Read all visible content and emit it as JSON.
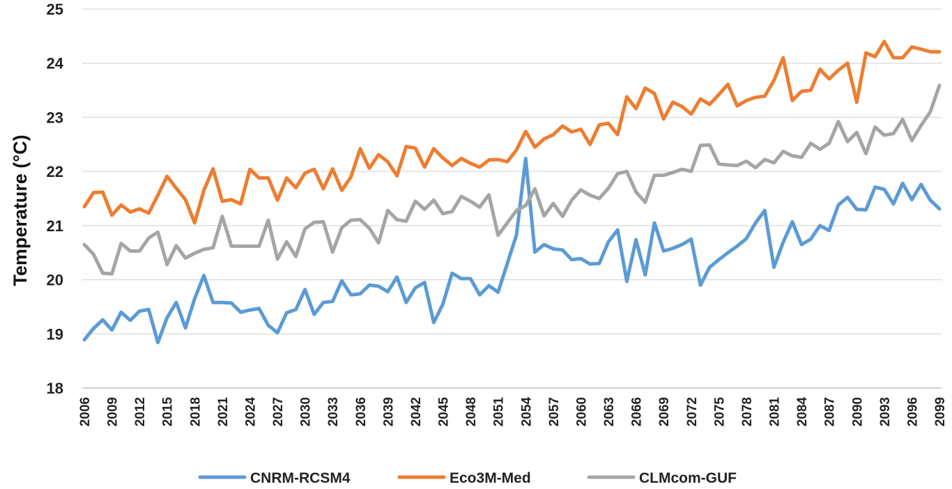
{
  "chart_data": {
    "type": "line",
    "title": "",
    "xlabel": "",
    "ylabel": "Temperature (°C)",
    "ylim": [
      18,
      25
    ],
    "yticks": [
      "18",
      "19",
      "20",
      "21",
      "22",
      "23",
      "24",
      "25"
    ],
    "grid": true,
    "legend_position": "bottom",
    "x_start": 2006,
    "x_end": 2099,
    "x_tick_labels": [
      "2006",
      "2009",
      "2012",
      "2015",
      "2018",
      "2021",
      "2024",
      "2027",
      "2030",
      "2033",
      "2036",
      "2039",
      "2042",
      "2045",
      "2048",
      "2051",
      "2054",
      "2057",
      "2060",
      "2063",
      "2066",
      "2069",
      "2072",
      "2075",
      "2078",
      "2081",
      "2084",
      "2087",
      "2090",
      "2093",
      "2096",
      "2099"
    ],
    "series": [
      {
        "name": "CNRM-RCSM4",
        "color": "#5b9bd5",
        "values": [
          18.89,
          19.1,
          19.26,
          19.07,
          19.4,
          19.25,
          19.42,
          19.45,
          18.84,
          19.3,
          19.58,
          19.11,
          19.65,
          20.08,
          19.58,
          19.58,
          19.57,
          19.4,
          19.44,
          19.47,
          19.16,
          19.02,
          19.39,
          19.45,
          19.82,
          19.36,
          19.58,
          19.6,
          19.98,
          19.72,
          19.74,
          19.9,
          19.88,
          19.78,
          20.05,
          19.58,
          19.85,
          19.95,
          19.21,
          19.55,
          20.12,
          20.02,
          20.02,
          19.72,
          19.89,
          19.77,
          20.3,
          20.83,
          22.24,
          20.51,
          20.65,
          20.57,
          20.55,
          20.37,
          20.39,
          20.29,
          20.3,
          20.7,
          20.92,
          19.97,
          20.74,
          20.09,
          21.05,
          20.53,
          20.58,
          20.65,
          20.75,
          19.9,
          20.23,
          20.37,
          20.5,
          20.62,
          20.76,
          21.05,
          21.28,
          20.23,
          20.69,
          21.07,
          20.65,
          20.75,
          21.0,
          20.91,
          21.38,
          21.52,
          21.3,
          21.29,
          21.71,
          21.67,
          21.4,
          21.78,
          21.48,
          21.76,
          21.47,
          21.31
        ]
      },
      {
        "name": "Eco3M-Med",
        "color": "#ed7d31",
        "values": [
          21.35,
          21.61,
          21.62,
          21.19,
          21.38,
          21.25,
          21.31,
          21.23,
          21.56,
          21.91,
          21.69,
          21.48,
          21.05,
          21.65,
          22.05,
          21.45,
          21.48,
          21.4,
          22.04,
          21.88,
          21.88,
          21.47,
          21.88,
          21.7,
          21.97,
          22.04,
          21.68,
          22.05,
          21.65,
          21.9,
          22.42,
          22.06,
          22.31,
          22.18,
          21.92,
          22.46,
          22.43,
          22.08,
          22.42,
          22.25,
          22.11,
          22.24,
          22.15,
          22.08,
          22.21,
          22.22,
          22.18,
          22.4,
          22.74,
          22.45,
          22.6,
          22.68,
          22.84,
          22.73,
          22.78,
          22.5,
          22.86,
          22.89,
          22.68,
          23.38,
          23.16,
          23.54,
          23.44,
          22.97,
          23.28,
          23.2,
          23.06,
          23.34,
          23.24,
          23.42,
          23.61,
          23.21,
          23.31,
          23.37,
          23.39,
          23.68,
          24.1,
          23.31,
          23.48,
          23.5,
          23.89,
          23.71,
          23.87,
          24.0,
          23.28,
          24.19,
          24.12,
          24.4,
          24.1,
          24.1,
          24.3,
          24.26,
          24.21,
          24.21
        ]
      },
      {
        "name": "CLMcom-GUF",
        "color": "#a5a5a5",
        "values": [
          20.65,
          20.47,
          20.12,
          20.11,
          20.67,
          20.53,
          20.53,
          20.77,
          20.88,
          20.28,
          20.63,
          20.4,
          20.49,
          20.56,
          20.59,
          21.17,
          20.62,
          20.62,
          20.62,
          20.62,
          21.1,
          20.38,
          20.7,
          20.43,
          20.94,
          21.06,
          21.07,
          20.51,
          20.96,
          21.1,
          21.11,
          20.95,
          20.68,
          21.28,
          21.11,
          21.08,
          21.45,
          21.3,
          21.47,
          21.22,
          21.26,
          21.54,
          21.45,
          21.34,
          21.57,
          20.82,
          21.05,
          21.28,
          21.37,
          21.68,
          21.18,
          21.41,
          21.17,
          21.47,
          21.66,
          21.56,
          21.5,
          21.69,
          21.96,
          22.0,
          21.62,
          21.43,
          21.93,
          21.93,
          21.98,
          22.04,
          22.0,
          22.48,
          22.49,
          22.14,
          22.12,
          22.11,
          22.19,
          22.07,
          22.22,
          22.16,
          22.37,
          22.29,
          22.26,
          22.52,
          22.41,
          22.52,
          22.92,
          22.55,
          22.72,
          22.33,
          22.82,
          22.67,
          22.7,
          22.96,
          22.57,
          22.85,
          23.1,
          23.59
        ]
      }
    ]
  }
}
